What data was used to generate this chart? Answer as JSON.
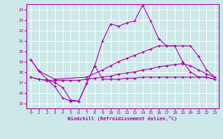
{
  "xlabel": "Windchill (Refroidissement éolien,°C)",
  "xlim": [
    -0.5,
    23.5
  ],
  "ylim": [
    14.5,
    24.5
  ],
  "yticks": [
    15,
    16,
    17,
    18,
    19,
    20,
    21,
    22,
    23,
    24
  ],
  "xticks": [
    0,
    1,
    2,
    3,
    4,
    5,
    6,
    7,
    8,
    9,
    10,
    11,
    12,
    13,
    14,
    15,
    16,
    17,
    18,
    19,
    20,
    21,
    22,
    23
  ],
  "bg_color": "#cce8e8",
  "grid_color": "#ffffff",
  "line_color": "#aa00aa",
  "line_width": 0.8,
  "marker": "+",
  "marker_size": 3,
  "curves": [
    {
      "x": [
        0,
        1,
        2,
        3,
        4,
        5,
        6,
        7,
        8,
        9,
        10,
        11,
        12,
        13,
        14,
        15,
        16,
        17,
        18,
        19,
        20,
        21,
        22,
        23
      ],
      "y": [
        19.2,
        18.1,
        17.3,
        16.6,
        15.5,
        15.2,
        15.2,
        16.9,
        18.6,
        21.0,
        22.6,
        22.4,
        22.7,
        22.9,
        24.4,
        22.9,
        21.2,
        20.5,
        20.5,
        19.0,
        18.0,
        17.5,
        17.5,
        17.3
      ]
    },
    {
      "x": [
        0,
        1,
        3,
        7,
        9,
        10,
        11,
        12,
        13,
        14,
        15,
        16,
        17,
        18,
        19,
        20,
        21,
        22,
        23
      ],
      "y": [
        19.2,
        18.1,
        17.3,
        17.5,
        18.2,
        18.6,
        19.0,
        19.3,
        19.6,
        19.9,
        20.2,
        20.5,
        20.5,
        20.5,
        20.5,
        20.5,
        19.5,
        18.2,
        17.5
      ]
    },
    {
      "x": [
        0,
        1,
        2,
        3,
        4,
        5,
        6,
        7,
        8,
        9,
        10,
        11,
        12,
        13,
        14,
        15,
        16,
        17,
        18,
        19,
        20,
        21,
        22,
        23
      ],
      "y": [
        17.5,
        17.3,
        17.2,
        17.2,
        17.2,
        17.2,
        17.2,
        17.3,
        17.4,
        17.5,
        17.6,
        17.8,
        17.9,
        18.0,
        18.2,
        18.3,
        18.5,
        18.6,
        18.7,
        18.8,
        18.6,
        18.2,
        17.8,
        17.5
      ]
    },
    {
      "x": [
        0,
        1,
        2,
        3,
        4,
        5,
        6,
        7,
        8,
        9,
        10,
        11,
        12,
        13,
        14,
        15,
        16,
        17,
        18,
        19,
        20,
        21,
        22,
        23
      ],
      "y": [
        17.5,
        17.3,
        17.2,
        17.0,
        16.5,
        15.3,
        15.2,
        16.9,
        18.6,
        17.3,
        17.3,
        17.3,
        17.4,
        17.4,
        17.5,
        17.5,
        17.5,
        17.5,
        17.5,
        17.5,
        17.5,
        17.5,
        17.5,
        17.3
      ]
    }
  ]
}
